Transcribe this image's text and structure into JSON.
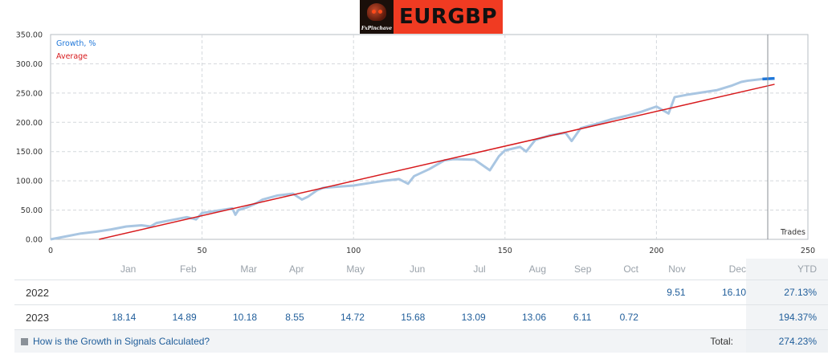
{
  "banner": {
    "title": "EURGBP",
    "logo_text": "FxPinchave"
  },
  "chart_data": {
    "type": "line",
    "x_ticks": [
      0,
      50,
      100,
      150,
      200,
      250
    ],
    "y_ticks": [
      "0.00",
      "50.00",
      "100.00",
      "150.00",
      "200.00",
      "250.00",
      "300.00",
      "350.00"
    ],
    "xlim": [
      0,
      250
    ],
    "ylim": [
      0,
      350
    ],
    "grid": true,
    "legend_position": "top-left",
    "x_annotation": "Trades",
    "series": [
      {
        "name": "Growth, %",
        "color": "#a9c6e2",
        "x": [
          0,
          5,
          10,
          15,
          20,
          25,
          30,
          33,
          35,
          40,
          45,
          48,
          50,
          55,
          60,
          61,
          62,
          65,
          68,
          70,
          75,
          80,
          83,
          85,
          88,
          90,
          95,
          100,
          105,
          110,
          115,
          118,
          120,
          125,
          130,
          133,
          140,
          145,
          148,
          150,
          155,
          157,
          160,
          165,
          170,
          172,
          175,
          180,
          185,
          190,
          195,
          200,
          204,
          206,
          210,
          215,
          220,
          225,
          228,
          230,
          235,
          236
        ],
        "y": [
          0,
          5,
          10,
          13,
          17,
          22,
          24,
          22,
          28,
          33,
          38,
          34,
          45,
          49,
          53,
          42,
          50,
          55,
          62,
          68,
          75,
          78,
          68,
          73,
          84,
          88,
          90,
          92,
          96,
          100,
          103,
          95,
          108,
          120,
          135,
          137,
          136,
          118,
          142,
          152,
          158,
          150,
          170,
          178,
          182,
          168,
          190,
          197,
          205,
          211,
          218,
          227,
          215,
          243,
          247,
          251,
          255,
          263,
          269,
          271,
          274,
          274
        ]
      },
      {
        "name": "Average",
        "color": "#d7191c",
        "x": [
          16,
          239
        ],
        "y": [
          0,
          265
        ]
      }
    ],
    "projection": {
      "color": "#1f77d9",
      "x": [
        235,
        239
      ],
      "y": [
        274,
        275
      ]
    }
  },
  "stats": {
    "months": [
      "Jan",
      "Feb",
      "Mar",
      "Apr",
      "May",
      "Jun",
      "Jul",
      "Aug",
      "Sep",
      "Oct",
      "Nov",
      "Dec"
    ],
    "ytd_label": "YTD",
    "years": [
      {
        "year": "2022",
        "months": [
          "",
          "",
          "",
          "",
          "",
          "",
          "",
          "",
          "",
          "",
          "9.51",
          "16.10"
        ],
        "ytd": "27.13%"
      },
      {
        "year": "2023",
        "months": [
          "18.14",
          "14.89",
          "10.18",
          "8.55",
          "14.72",
          "15.68",
          "13.09",
          "13.06",
          "6.11",
          "0.72",
          "",
          ""
        ],
        "ytd": "194.37%"
      }
    ],
    "how_link": "How is the Growth in Signals Calculated?",
    "total_label": "Total:",
    "total_value": "274.23%"
  }
}
